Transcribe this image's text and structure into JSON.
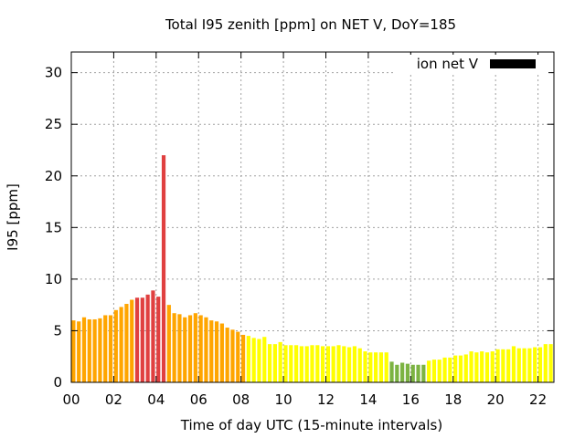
{
  "chart_data": {
    "type": "bar",
    "title": "Total I95 zenith [ppm] on NET V, DoY=185",
    "xlabel": "Time of day UTC (15-minute intervals)",
    "ylabel": "I95 [ppm]",
    "x_unit": "hours UTC",
    "bar_interval_minutes": 15,
    "xlim": [
      0,
      22.75
    ],
    "ylim": [
      0,
      32
    ],
    "x_ticks": [
      0,
      2,
      4,
      6,
      8,
      10,
      12,
      14,
      16,
      18,
      20,
      22
    ],
    "x_tick_labels": [
      "00",
      "02",
      "04",
      "06",
      "08",
      "10",
      "12",
      "14",
      "16",
      "18",
      "20",
      "22"
    ],
    "y_ticks": [
      0,
      5,
      10,
      15,
      20,
      25,
      30
    ],
    "y_tick_labels": [
      "0",
      "5",
      "10",
      "15",
      "20",
      "25",
      "30"
    ],
    "grid": true,
    "legend": {
      "label": "ion net V",
      "swatch_color": "#000000",
      "placement": "top-right"
    },
    "color_classes": [
      {
        "max": 2,
        "color": "#7cb342"
      },
      {
        "max": 4.5,
        "color": "#ffff00"
      },
      {
        "max": 8,
        "color": "#ffa500"
      },
      {
        "max": 999,
        "color": "#e04040"
      }
    ],
    "values": [
      6.0,
      5.9,
      6.3,
      6.1,
      6.1,
      6.2,
      6.5,
      6.5,
      7.0,
      7.3,
      7.6,
      8.0,
      8.2,
      8.2,
      8.5,
      8.9,
      8.3,
      22.0,
      7.5,
      6.7,
      6.6,
      6.3,
      6.5,
      6.7,
      6.5,
      6.3,
      6.0,
      5.9,
      5.7,
      5.3,
      5.1,
      4.9,
      4.6,
      4.5,
      4.3,
      4.2,
      4.4,
      3.7,
      3.7,
      3.9,
      3.6,
      3.6,
      3.6,
      3.5,
      3.5,
      3.6,
      3.6,
      3.5,
      3.5,
      3.5,
      3.6,
      3.5,
      3.4,
      3.5,
      3.3,
      3.0,
      2.9,
      2.9,
      2.9,
      2.9,
      2.0,
      1.7,
      1.9,
      1.8,
      1.7,
      1.7,
      1.7,
      2.1,
      2.2,
      2.2,
      2.4,
      2.4,
      2.6,
      2.6,
      2.7,
      3.0,
      2.9,
      3.0,
      2.9,
      3.0,
      3.2,
      3.2,
      3.2,
      3.5,
      3.3,
      3.3,
      3.3,
      3.4,
      3.4,
      3.7,
      3.7
    ]
  }
}
